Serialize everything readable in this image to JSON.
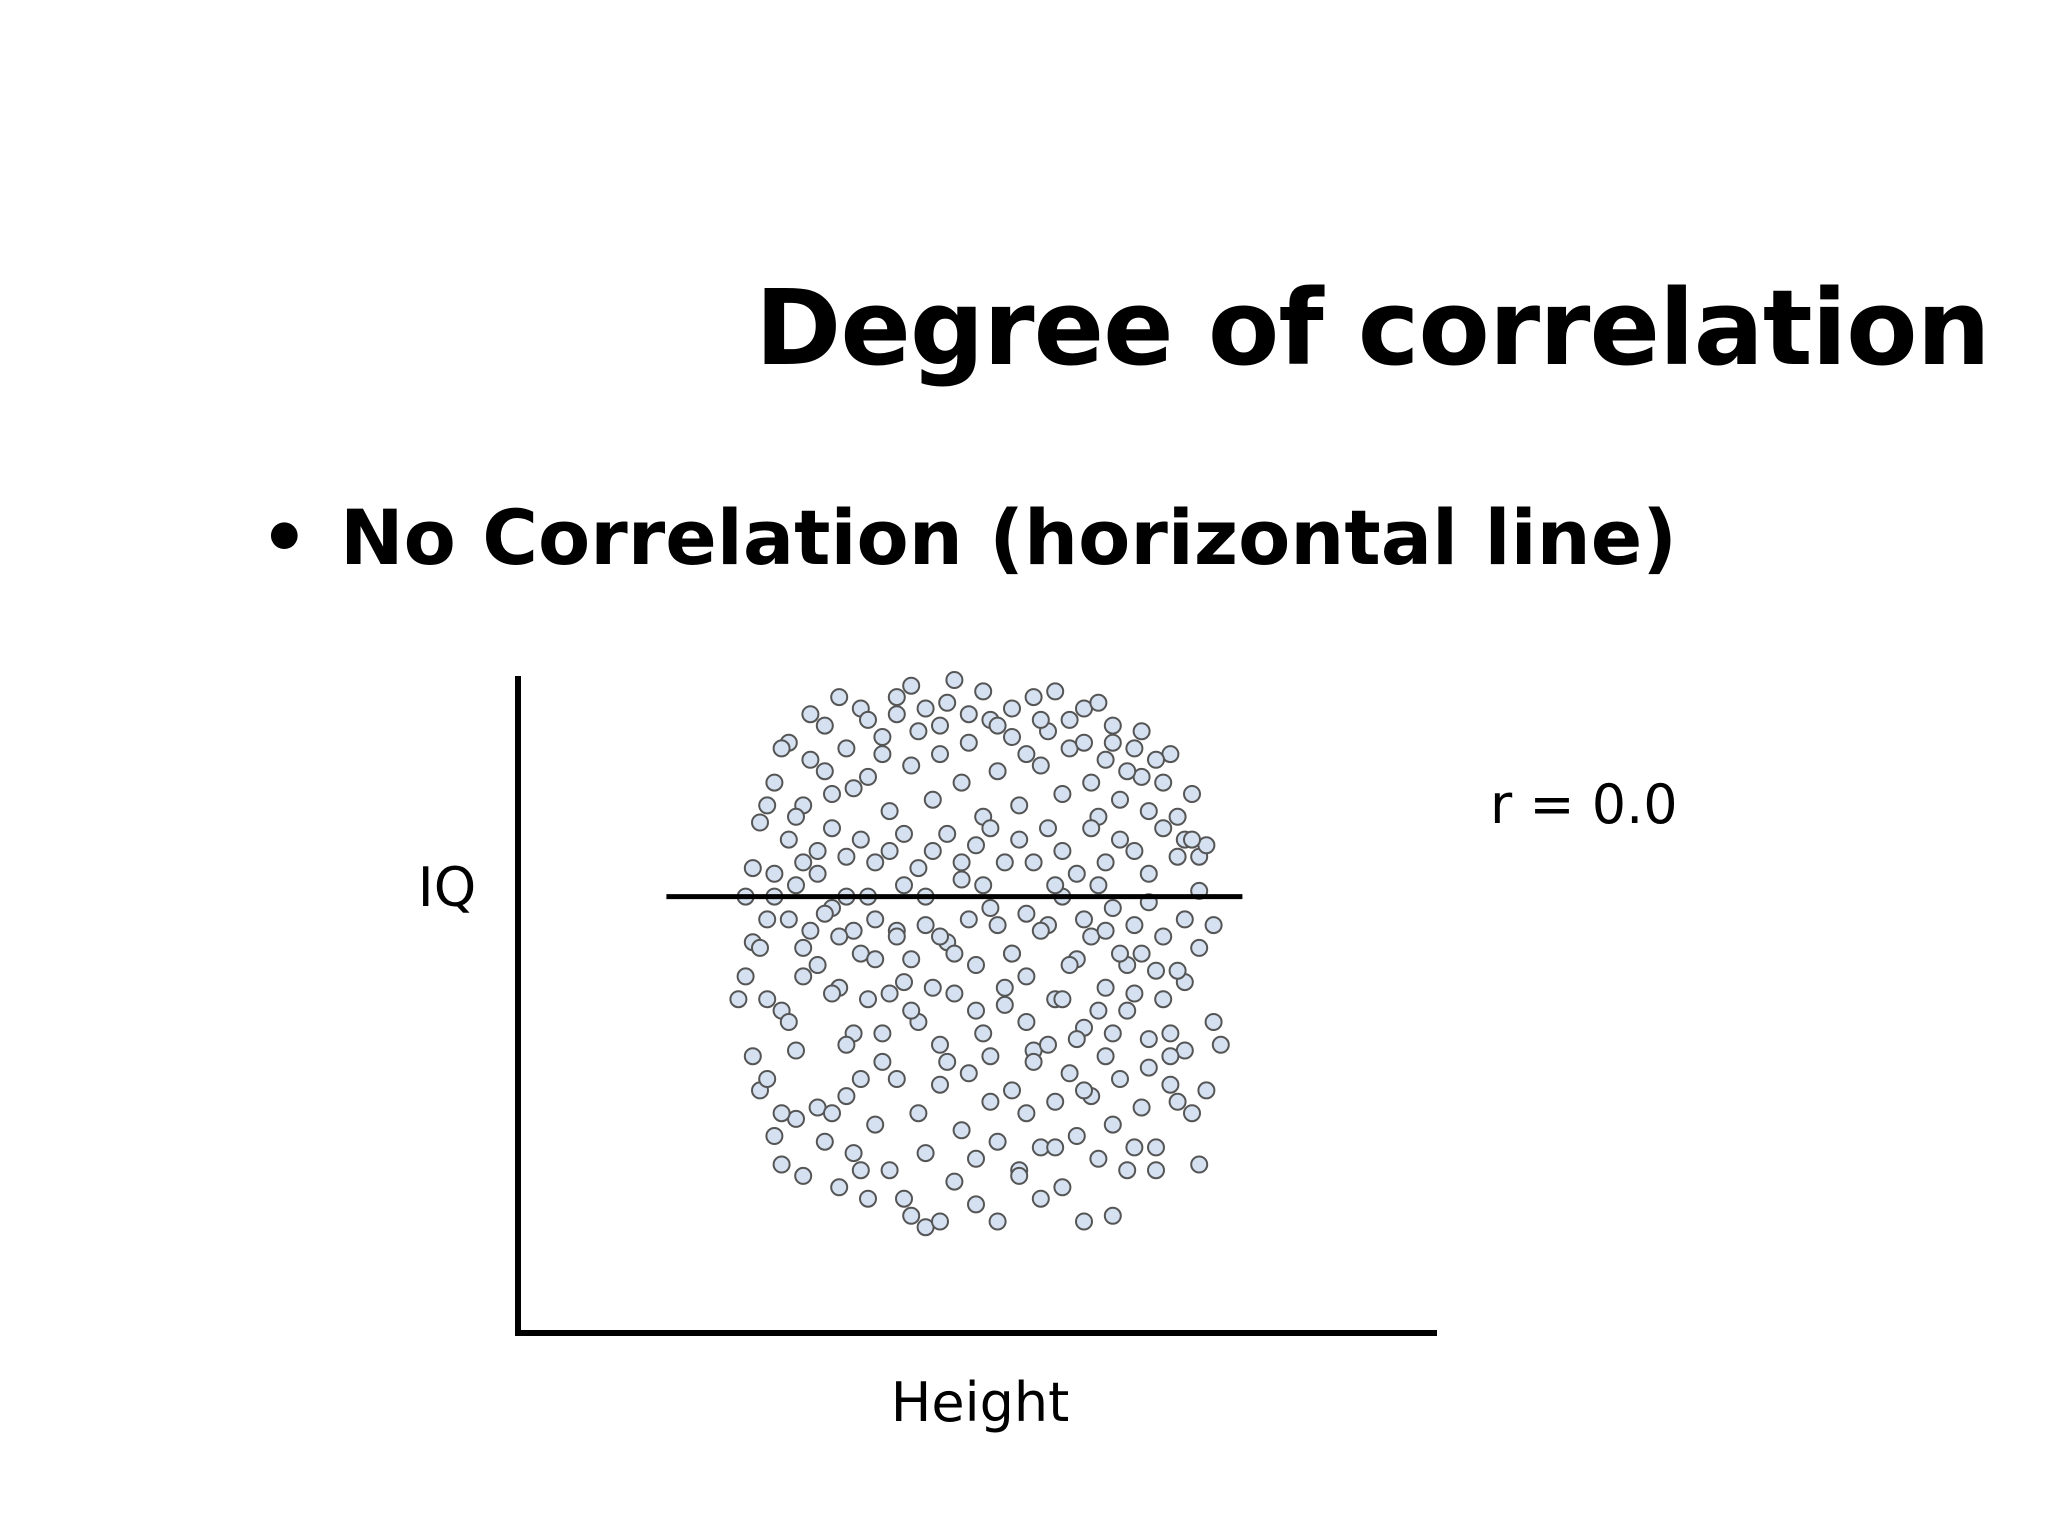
{
  "slide": {
    "title": "Degree of correlation",
    "bullet": "No Correlation (horizontal line)",
    "bullet_marker": "•"
  },
  "chart_data": {
    "type": "scatter",
    "xlabel": "Height",
    "ylabel": "IQ",
    "annotation": "r = 0.0",
    "xlim": [
      0,
      100
    ],
    "ylim": [
      0,
      100
    ],
    "grid": false,
    "ticks": false,
    "point_fill": "#d5e1f0",
    "point_stroke": "#555555",
    "trend_line": {
      "x": [
        12,
        92
      ],
      "y": [
        62,
        62
      ]
    },
    "points": [
      [
        23,
        62
      ],
      [
        24,
        54
      ],
      [
        26,
        44
      ],
      [
        28,
        42
      ],
      [
        29,
        40
      ],
      [
        31,
        48
      ],
      [
        30,
        35
      ],
      [
        33,
        50
      ],
      [
        35,
        60
      ],
      [
        36,
        46
      ],
      [
        38,
        38
      ],
      [
        39,
        52
      ],
      [
        41,
        58
      ],
      [
        42,
        33
      ],
      [
        44,
        56
      ],
      [
        45,
        47
      ],
      [
        47,
        40
      ],
      [
        48,
        62
      ],
      [
        50,
        36
      ],
      [
        51,
        54
      ],
      [
        52,
        45
      ],
      [
        53,
        65
      ],
      [
        55,
        50
      ],
      [
        56,
        38
      ],
      [
        57,
        60
      ],
      [
        59,
        43
      ],
      [
        60,
        52
      ],
      [
        62,
        48
      ],
      [
        63,
        35
      ],
      [
        65,
        57
      ],
      [
        66,
        44
      ],
      [
        67,
        62
      ],
      [
        69,
        51
      ],
      [
        70,
        39
      ],
      [
        71,
        55
      ],
      [
        73,
        46
      ],
      [
        74,
        60
      ],
      [
        76,
        42
      ],
      [
        78,
        52
      ],
      [
        80,
        49
      ],
      [
        82,
        38
      ],
      [
        84,
        47
      ],
      [
        86,
        63
      ],
      [
        25,
        75
      ],
      [
        27,
        82
      ],
      [
        29,
        89
      ],
      [
        31,
        78
      ],
      [
        32,
        86
      ],
      [
        34,
        92
      ],
      [
        35,
        80
      ],
      [
        37,
        88
      ],
      [
        39,
        95
      ],
      [
        40,
        83
      ],
      [
        42,
        90
      ],
      [
        43,
        77
      ],
      [
        44,
        97
      ],
      [
        46,
        85
      ],
      [
        47,
        91
      ],
      [
        49,
        79
      ],
      [
        50,
        87
      ],
      [
        51,
        96
      ],
      [
        53,
        82
      ],
      [
        54,
        89
      ],
      [
        56,
        76
      ],
      [
        57,
        93
      ],
      [
        58,
        84
      ],
      [
        60,
        90
      ],
      [
        61,
        78
      ],
      [
        63,
        97
      ],
      [
        64,
        85
      ],
      [
        65,
        91
      ],
      [
        67,
        80
      ],
      [
        68,
        88
      ],
      [
        70,
        95
      ],
      [
        71,
        82
      ],
      [
        72,
        76
      ],
      [
        73,
        86
      ],
      [
        74,
        92
      ],
      [
        75,
        79
      ],
      [
        77,
        88
      ],
      [
        78,
        83
      ],
      [
        79,
        77
      ],
      [
        81,
        82
      ],
      [
        82,
        87
      ],
      [
        83,
        76
      ],
      [
        84,
        72
      ],
      [
        85,
        80
      ],
      [
        86,
        69
      ],
      [
        87,
        71
      ],
      [
        25,
        28
      ],
      [
        27,
        20
      ],
      [
        28,
        15
      ],
      [
        30,
        23
      ],
      [
        31,
        13
      ],
      [
        33,
        25
      ],
      [
        34,
        19
      ],
      [
        36,
        11
      ],
      [
        37,
        27
      ],
      [
        38,
        17
      ],
      [
        40,
        9
      ],
      [
        41,
        22
      ],
      [
        43,
        14
      ],
      [
        44,
        30
      ],
      [
        45,
        9
      ],
      [
        47,
        24
      ],
      [
        48,
        17
      ],
      [
        50,
        29
      ],
      [
        52,
        12
      ],
      [
        53,
        21
      ],
      [
        54,
        31
      ],
      [
        55,
        8
      ],
      [
        57,
        26
      ],
      [
        58,
        19
      ],
      [
        60,
        28
      ],
      [
        61,
        14
      ],
      [
        62,
        24
      ],
      [
        63,
        33
      ],
      [
        64,
        18
      ],
      [
        66,
        26
      ],
      [
        67,
        11
      ],
      [
        68,
        31
      ],
      [
        69,
        20
      ],
      [
        71,
        27
      ],
      [
        72,
        16
      ],
      [
        73,
        34
      ],
      [
        74,
        22
      ],
      [
        75,
        30
      ],
      [
        76,
        14
      ],
      [
        78,
        25
      ],
      [
        79,
        32
      ],
      [
        80,
        18
      ],
      [
        82,
        29
      ],
      [
        83,
        26
      ],
      [
        84,
        35
      ],
      [
        85,
        24
      ],
      [
        86,
        15
      ],
      [
        87,
        28
      ],
      [
        88,
        40
      ],
      [
        89,
        36
      ],
      [
        70,
        5
      ],
      [
        22,
        44
      ],
      [
        23,
        48
      ],
      [
        24,
        34
      ],
      [
        26,
        30
      ],
      [
        28,
        24
      ],
      [
        35,
        24
      ],
      [
        39,
        14
      ],
      [
        46,
        6
      ],
      [
        48,
        4
      ],
      [
        50,
        5
      ],
      [
        55,
        16
      ],
      [
        58,
        5
      ],
      [
        61,
        13
      ],
      [
        64,
        9
      ],
      [
        66,
        18
      ],
      [
        70,
        28
      ],
      [
        74,
        6
      ],
      [
        77,
        18
      ],
      [
        80,
        14
      ],
      [
        82,
        34
      ],
      [
        88,
        57
      ],
      [
        86,
        53
      ],
      [
        84,
        58
      ],
      [
        83,
        49
      ],
      [
        81,
        55
      ],
      [
        79,
        61
      ],
      [
        77,
        57
      ],
      [
        76,
        50
      ],
      [
        72,
        64
      ],
      [
        70,
        58
      ],
      [
        68,
        50
      ],
      [
        66,
        64
      ],
      [
        64,
        56
      ],
      [
        62,
        59
      ],
      [
        60,
        52
      ],
      [
        58,
        57
      ],
      [
        56,
        64
      ],
      [
        54,
        58
      ],
      [
        52,
        52
      ],
      [
        50,
        55
      ],
      [
        48,
        57
      ],
      [
        46,
        51
      ],
      [
        44,
        55
      ],
      [
        43,
        45
      ],
      [
        41,
        51
      ],
      [
        40,
        44
      ],
      [
        38,
        56
      ],
      [
        37,
        62
      ],
      [
        36,
        55
      ],
      [
        34,
        59
      ],
      [
        32,
        56
      ],
      [
        31,
        53
      ],
      [
        30,
        64
      ],
      [
        29,
        58
      ],
      [
        27,
        62
      ],
      [
        26,
        58
      ],
      [
        25,
        53
      ],
      [
        33,
        66
      ],
      [
        40,
        62
      ],
      [
        45,
        64
      ],
      [
        61,
        72
      ],
      [
        63,
        68
      ],
      [
        65,
        74
      ],
      [
        67,
        70
      ],
      [
        69,
        66
      ],
      [
        71,
        74
      ],
      [
        73,
        68
      ],
      [
        75,
        72
      ],
      [
        77,
        70
      ],
      [
        79,
        66
      ],
      [
        81,
        74
      ],
      [
        83,
        69
      ],
      [
        85,
        72
      ],
      [
        59,
        68
      ],
      [
        57,
        74
      ],
      [
        55,
        71
      ],
      [
        53,
        68
      ],
      [
        51,
        73
      ],
      [
        49,
        70
      ],
      [
        47,
        67
      ],
      [
        45,
        73
      ],
      [
        43,
        70
      ],
      [
        41,
        68
      ],
      [
        39,
        72
      ],
      [
        37,
        69
      ],
      [
        35,
        74
      ],
      [
        33,
        70
      ],
      [
        31,
        68
      ],
      [
        29,
        72
      ],
      [
        27,
        66
      ],
      [
        24,
        67
      ],
      [
        26,
        78
      ],
      [
        28,
        88
      ],
      [
        30,
        76
      ],
      [
        32,
        94
      ],
      [
        34,
        84
      ],
      [
        36,
        97
      ],
      [
        38,
        81
      ],
      [
        40,
        93
      ],
      [
        42,
        87
      ],
      [
        44,
        94
      ],
      [
        46,
        99
      ],
      [
        48,
        95
      ],
      [
        50,
        92
      ],
      [
        52,
        100
      ],
      [
        54,
        94
      ],
      [
        56,
        98
      ],
      [
        58,
        92
      ],
      [
        60,
        95
      ],
      [
        62,
        87
      ],
      [
        64,
        93
      ],
      [
        66,
        98
      ],
      [
        68,
        93
      ],
      [
        70,
        89
      ],
      [
        72,
        96
      ],
      [
        74,
        89
      ],
      [
        76,
        84
      ],
      [
        78,
        91
      ],
      [
        80,
        86
      ],
      [
        35,
        45
      ],
      [
        37,
        36
      ],
      [
        39,
        30
      ],
      [
        42,
        38
      ],
      [
        46,
        42
      ],
      [
        49,
        46
      ],
      [
        51,
        33
      ],
      [
        55,
        42
      ],
      [
        57,
        34
      ],
      [
        59,
        46
      ],
      [
        62,
        40
      ],
      [
        65,
        36
      ],
      [
        67,
        44
      ],
      [
        69,
        37
      ],
      [
        72,
        42
      ],
      [
        74,
        38
      ],
      [
        77,
        45
      ],
      [
        79,
        37
      ],
      [
        81,
        44
      ],
      [
        75,
        52
      ],
      [
        73,
        56
      ]
    ]
  }
}
